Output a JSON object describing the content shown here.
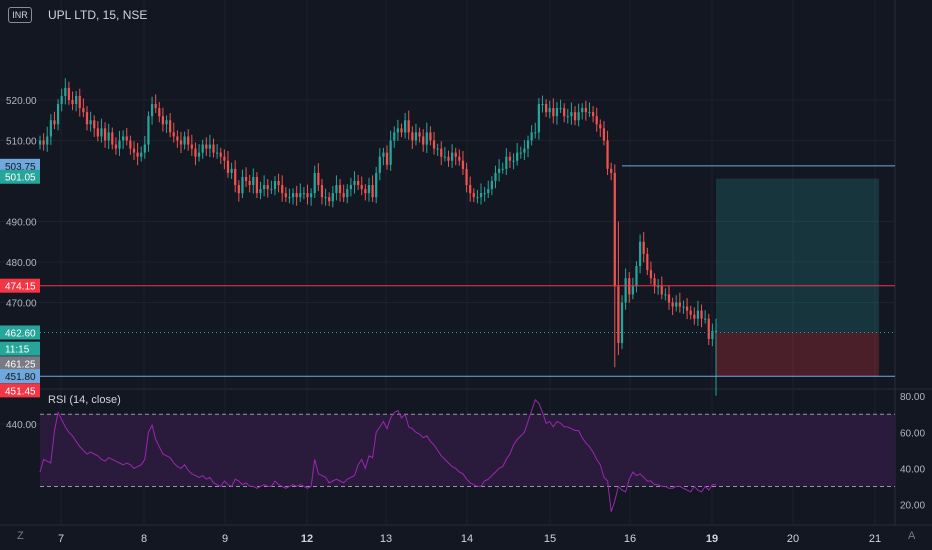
{
  "header": {
    "symbol_title": "UPL LTD, 15, NSE",
    "currency_badge": "INR"
  },
  "rsi_panel": {
    "title": "RSI (14, close)"
  },
  "footer": {
    "z_label": "Z",
    "auto_label": "A"
  },
  "colors": {
    "background": "#131722",
    "up": "#26a69a",
    "down": "#ef5350",
    "rsi_line": "#9c27b0",
    "rsi_band": "#2a1a3c",
    "grid": "#1e222d",
    "hline_blue": "#6fa8dc",
    "hline_red": "#f23645"
  },
  "chart_data": [
    {
      "type": "candlestick",
      "title": "UPL LTD, 15, NSE",
      "x_ticks": [
        "7",
        "8",
        "9",
        "12",
        "13",
        "14",
        "15",
        "16",
        "19",
        "20",
        "21"
      ],
      "y_ticks": [
        "520.00",
        "510.00",
        "490.00",
        "480.00",
        "470.00",
        "440.00"
      ],
      "ylim": [
        437,
        528
      ],
      "series": [
        {
          "name": "UPL LTD",
          "close": [
            510,
            509,
            511,
            515,
            514,
            519,
            521,
            523,
            520,
            519,
            521,
            518,
            517,
            514,
            515,
            513,
            511,
            513,
            510,
            512,
            509,
            508,
            510,
            511,
            510,
            508,
            507,
            506,
            507,
            509,
            516,
            519,
            518,
            516,
            514,
            515,
            512,
            511,
            510,
            509,
            511,
            509,
            508,
            506,
            507,
            509,
            508,
            509,
            507,
            507,
            506,
            505,
            502,
            503,
            499,
            497,
            501,
            500,
            499,
            501,
            497,
            498,
            499,
            498,
            498,
            500,
            499,
            497,
            496,
            496,
            497,
            496,
            497,
            497,
            496,
            497,
            502,
            499,
            496,
            496,
            495,
            497,
            499,
            497,
            496,
            498,
            499,
            500,
            499,
            498,
            497,
            499,
            496,
            502,
            506,
            507,
            504,
            510,
            512,
            513,
            512,
            515,
            512,
            510,
            512,
            511,
            509,
            512,
            510,
            508,
            508,
            506,
            506,
            505,
            507,
            506,
            505,
            503,
            499,
            497,
            496,
            496,
            497,
            497,
            498,
            500,
            502,
            503,
            503,
            506,
            505,
            505,
            507,
            507,
            508,
            510,
            512,
            512,
            519,
            519,
            517,
            518,
            516,
            518,
            518,
            516,
            516,
            517,
            515,
            517,
            518,
            517,
            517,
            516,
            514,
            513,
            510,
            503,
            502,
            474,
            460,
            470,
            476,
            472,
            474,
            479,
            485,
            482,
            478,
            476,
            474,
            474,
            472,
            472,
            470,
            469,
            470,
            469,
            469,
            468,
            467,
            466,
            468,
            466,
            466,
            461,
            463,
            463
          ]
        }
      ],
      "reference_lines": [
        {
          "label": "503.75",
          "value": 503.75
        },
        {
          "label": "474.15",
          "value": 474.15
        },
        {
          "label": "451.80",
          "value": 451.8
        }
      ],
      "price_labels": [
        {
          "label": "503.75",
          "value": 503.75,
          "kind": "blue"
        },
        {
          "label": "501.05",
          "value": 501.05,
          "kind": "green"
        },
        {
          "label": "474.15",
          "value": 474.15,
          "kind": "red"
        },
        {
          "label": "462.60",
          "value": 462.6,
          "kind": "green"
        },
        {
          "label": "11:15",
          "value": 458.6,
          "kind": "green"
        },
        {
          "label": "461.25",
          "value": 455.0,
          "kind": "gray"
        },
        {
          "label": "451.80",
          "value": 451.8,
          "kind": "blue"
        },
        {
          "label": "451.45",
          "value": 448.3,
          "kind": "red"
        }
      ],
      "position": {
        "target": 500.6,
        "entry": 462.6,
        "stop": 451.8
      },
      "last_price": 462.6
    },
    {
      "type": "line",
      "title": "RSI (14, close)",
      "y_ticks": [
        "80.00",
        "60.00",
        "40.00",
        "20.00"
      ],
      "ylim": [
        13,
        82
      ],
      "band": [
        30,
        70
      ],
      "series": [
        {
          "name": "RSI",
          "values": [
            38,
            45,
            44,
            43,
            61,
            71,
            67,
            63,
            60,
            58,
            55,
            52,
            50,
            48,
            49,
            48,
            47,
            45,
            44,
            46,
            45,
            44,
            43,
            42,
            43,
            42,
            40,
            41,
            42,
            45,
            60,
            64,
            56,
            52,
            48,
            47,
            46,
            43,
            41,
            40,
            42,
            39,
            37,
            36,
            35,
            36,
            34,
            35,
            32,
            31,
            30,
            33,
            31,
            30,
            34,
            33,
            31,
            32,
            30,
            30,
            29,
            30,
            31,
            30,
            30,
            33,
            31,
            30,
            29,
            30,
            31,
            30,
            31,
            30,
            29,
            30,
            45,
            37,
            36,
            35,
            32,
            33,
            34,
            33,
            32,
            34,
            35,
            36,
            42,
            45,
            40,
            47,
            46,
            60,
            63,
            66,
            62,
            68,
            71,
            72,
            68,
            70,
            63,
            62,
            60,
            59,
            57,
            58,
            55,
            53,
            50,
            47,
            45,
            43,
            41,
            40,
            38,
            37,
            34,
            32,
            31,
            30,
            30,
            33,
            34,
            36,
            38,
            40,
            41,
            45,
            48,
            53,
            56,
            58,
            60,
            66,
            72,
            78,
            76,
            71,
            65,
            66,
            63,
            66,
            65,
            63,
            63,
            62,
            61,
            61,
            57,
            54,
            52,
            49,
            45,
            42,
            35,
            33,
            16,
            22,
            30,
            28,
            27,
            34,
            38,
            36,
            37,
            35,
            33,
            33,
            31,
            31,
            30,
            30,
            29,
            29,
            30,
            30,
            29,
            28,
            27,
            30,
            28,
            27,
            30,
            28,
            31,
            31
          ]
        }
      ]
    }
  ]
}
